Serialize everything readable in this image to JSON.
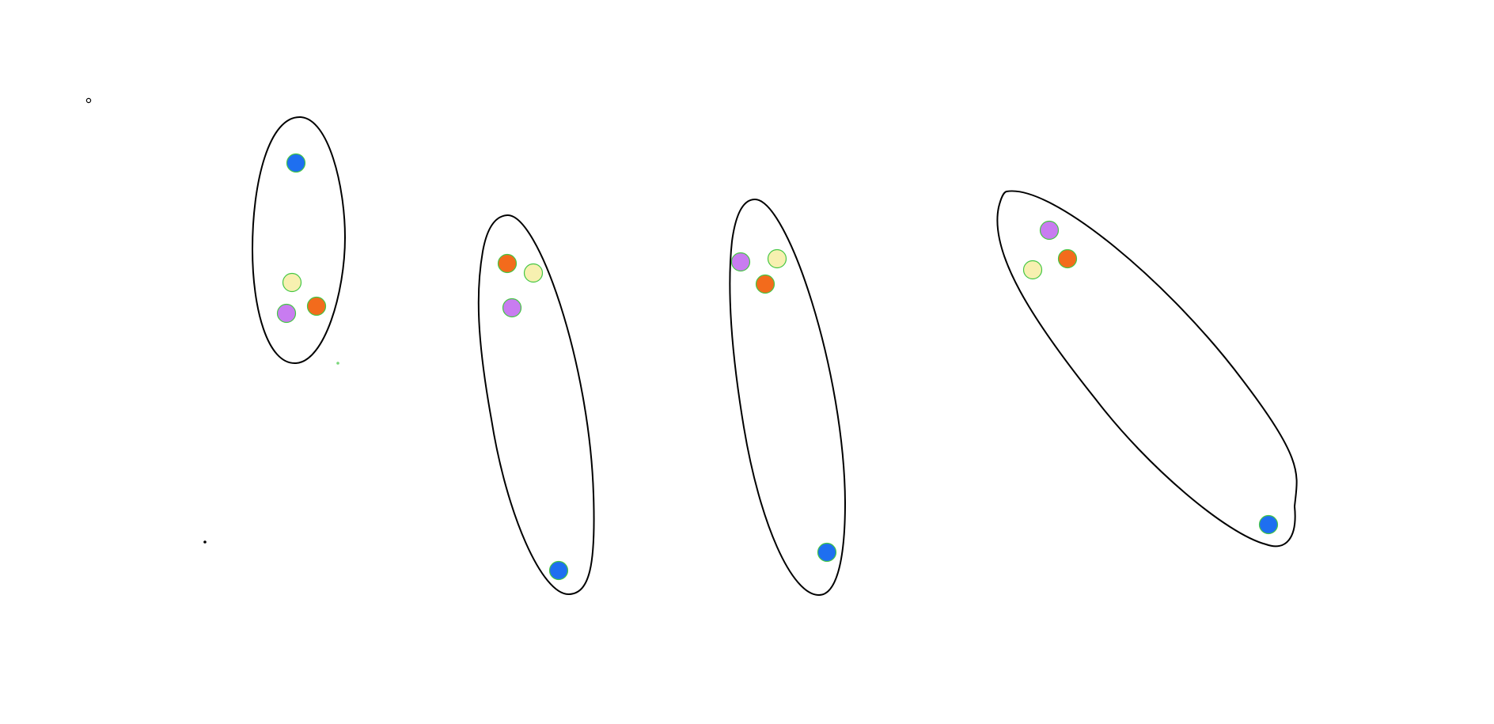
{
  "colors": {
    "background": "#ffffff",
    "outline": "#000000",
    "dot_stroke": "#44c744",
    "blue": "#1e6ff0",
    "yellow": "#f7f0b0",
    "purple": "#c87cf0",
    "orange": "#f36b1c",
    "green_mark": "#7ad67a"
  },
  "groups": [
    {
      "id": "group-1",
      "dots": [
        "blue",
        "yellow",
        "purple",
        "orange"
      ]
    },
    {
      "id": "group-2",
      "dots": [
        "orange",
        "yellow",
        "purple",
        "blue"
      ]
    },
    {
      "id": "group-3",
      "dots": [
        "purple",
        "yellow",
        "orange",
        "blue"
      ]
    },
    {
      "id": "group-4",
      "dots": [
        "purple",
        "orange",
        "yellow",
        "blue"
      ]
    }
  ]
}
